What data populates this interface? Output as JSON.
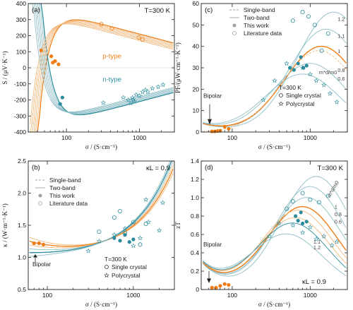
{
  "chart_data": [
    {
      "type": "scatter",
      "panel": "(a)",
      "annotation": "T=300 K",
      "xlabel": "σ / (S·cm⁻¹)",
      "ylabel": "S / (μV·K⁻¹)",
      "xscale": "log",
      "xlim": [
        30,
        3000
      ],
      "ylim": [
        -400,
        400
      ],
      "xticks": [
        "100",
        "1000"
      ],
      "yticks": [
        "-400",
        "-300",
        "-200",
        "-100",
        "0",
        "100",
        "200",
        "300",
        "400"
      ],
      "labels": [
        "p-type",
        "n-type"
      ],
      "series": [
        {
          "values": [
            [
              45,
              108
            ],
            [
              62,
              72
            ],
            [
              65,
              32
            ],
            [
              70,
              42
            ],
            [
              78,
              22
            ]
          ]
        },
        {
          "values": [
            [
              82,
              -225
            ],
            [
              88,
              -185
            ]
          ]
        },
        {
          "values": [
            [
              300,
              272
            ],
            [
              420,
              245
            ],
            [
              980,
              188
            ],
            [
              1100,
              176
            ]
          ]
        },
        {
          "values": [
            [
              320,
              -218
            ],
            [
              600,
              -185
            ],
            [
              700,
              -200
            ],
            [
              760,
              -220
            ],
            [
              800,
              -185
            ],
            [
              820,
              -200
            ],
            [
              850,
              -210
            ],
            [
              900,
              -168
            ],
            [
              1000,
              -175
            ],
            [
              1100,
              -150
            ],
            [
              1200,
              -138
            ],
            [
              1300,
              -150
            ],
            [
              1500,
              -128
            ],
            [
              1800,
              -118
            ],
            [
              2100,
              -105
            ]
          ]
        }
      ]
    },
    {
      "type": "line",
      "panel": "(c)",
      "annotation": "T=300 K",
      "xlabel": "σ / (S·cm⁻¹)",
      "ylabel": "PF/(μW·cm⁻¹·K⁻²)",
      "xscale": "log",
      "xlim": [
        40,
        3000
      ],
      "ylim": [
        0,
        60
      ],
      "xticks": [
        "100",
        "1000"
      ],
      "yticks": [
        "0",
        "10",
        "20",
        "30",
        "40",
        "50",
        "60"
      ],
      "legend": [
        "Single-band",
        "Two-band",
        "This work",
        "Literature data"
      ],
      "legend2": [
        "T=300 K",
        "Single crystal",
        "Polycrystal"
      ],
      "annotations": [
        "Bipolar",
        "1.2",
        "1.1",
        "1",
        "0.8",
        "0.6",
        "m*d/m0"
      ],
      "series": [
        {
          "values": [
            [
              55,
              0.3
            ],
            [
              60,
              0.3
            ],
            [
              65,
              0.5
            ],
            [
              70,
              0.6
            ],
            [
              80,
              2.5
            ],
            [
              90,
              1.5
            ]
          ]
        },
        {
          "values": [
            [
              550,
              30
            ],
            [
              620,
              29
            ],
            [
              700,
              32
            ],
            [
              760,
              35
            ],
            [
              820,
              30
            ],
            [
              900,
              31
            ]
          ]
        },
        {
          "values": [
            [
              600,
              52
            ],
            [
              800,
              56
            ],
            [
              950,
              54
            ],
            [
              1150,
              50
            ],
            [
              1400,
              38
            ],
            [
              1700,
              46
            ]
          ]
        },
        {
          "values": [
            [
              250,
              15
            ],
            [
              350,
              24
            ],
            [
              500,
              32
            ],
            [
              800,
              30
            ],
            [
              1000,
              27
            ],
            [
              1200,
              24
            ],
            [
              1500,
              22
            ],
            [
              1800,
              18
            ],
            [
              2200,
              14
            ]
          ]
        }
      ]
    },
    {
      "type": "line",
      "panel": "(b)",
      "annotation": "κL = 0.9",
      "annotation2": "T=300 K",
      "xlabel": "σ / (S·cm⁻¹)",
      "ylabel": "κ / (W·m⁻¹·K⁻¹)",
      "xscale": "log",
      "xlim": [
        60,
        3000
      ],
      "ylim": [
        0.5,
        2.5
      ],
      "xticks": [
        "100",
        "1000"
      ],
      "yticks": [
        "0.5",
        "1.0",
        "1.5",
        "2.0",
        "2.5"
      ],
      "legend": [
        "Single-band",
        "Two-band",
        "This work",
        "Literature data"
      ],
      "legend2": [
        "Single crystal",
        "Polycrystal"
      ],
      "annotations": [
        "Bipolar"
      ],
      "series": [
        {
          "values": [
            [
              70,
              1.22
            ],
            [
              80,
              1.22
            ],
            [
              90,
              1.2
            ]
          ]
        },
        {
          "values": [
            [
              600,
              1.3
            ],
            [
              700,
              1.26
            ],
            [
              800,
              1.35
            ],
            [
              900,
              1.24
            ],
            [
              1000,
              1.28
            ]
          ]
        },
        {
          "values": [
            [
              400,
              1.4
            ],
            [
              600,
              1.62
            ],
            [
              700,
              1.72
            ],
            [
              800,
              1.38
            ],
            [
              1000,
              1.55
            ],
            [
              1200,
              1.2
            ],
            [
              1400,
              1.52
            ]
          ]
        },
        {
          "values": [
            [
              300,
              1.1
            ],
            [
              400,
              1.25
            ],
            [
              600,
              1.35
            ],
            [
              800,
              1.45
            ],
            [
              1000,
              1.18
            ],
            [
              1200,
              1.3
            ],
            [
              1500,
              1.55
            ],
            [
              2000,
              1.42
            ],
            [
              2200,
              1.85
            ],
            [
              1400,
              1.9
            ]
          ]
        }
      ]
    },
    {
      "type": "line",
      "panel": "(d)",
      "annotation": "T=300 K",
      "annotation2": "κL = 0.9",
      "xlabel": "σ / (S·cm⁻¹)",
      "ylabel": "zT",
      "xscale": "log",
      "xlim": [
        40,
        3000
      ],
      "ylim": [
        0,
        1.4
      ],
      "xticks": [
        "100",
        "1000"
      ],
      "yticks": [
        "0",
        "0.2",
        "0.4",
        "0.6",
        "0.8",
        "1.0",
        "1.2",
        "1.4"
      ],
      "annotations": [
        "Bipolar",
        "m*d/m0",
        "0.6",
        "0.8",
        "1",
        "1.1",
        "1.2"
      ],
      "series": [
        {
          "values": [
            [
              55,
              0.02
            ],
            [
              62,
              0.02
            ],
            [
              70,
              0.04
            ],
            [
              80,
              0.06
            ],
            [
              90,
              0.05
            ]
          ]
        },
        {
          "values": [
            [
              650,
              0.8
            ],
            [
              700,
              0.75
            ],
            [
              760,
              0.84
            ],
            [
              800,
              0.72
            ],
            [
              900,
              0.74
            ]
          ]
        },
        {
          "values": [
            [
              500,
              0.88
            ],
            [
              600,
              0.96
            ],
            [
              800,
              1.05
            ],
            [
              1000,
              0.98
            ],
            [
              1300,
              0.95
            ],
            [
              1700,
              1.02
            ]
          ]
        },
        {
          "values": [
            [
              300,
              0.58
            ],
            [
              400,
              0.72
            ],
            [
              600,
              0.7
            ],
            [
              800,
              0.62
            ],
            [
              1000,
              0.68
            ],
            [
              1200,
              0.55
            ],
            [
              1500,
              0.58
            ],
            [
              1900,
              0.48
            ],
            [
              2200,
              0.52
            ]
          ]
        }
      ]
    }
  ],
  "colors": {
    "orange": "#ef7d15",
    "teal": "#2a8b9c",
    "lightTeal": "#8fbec7",
    "lightOrange": "#f3b77b",
    "grey": "#a0a0a0"
  }
}
